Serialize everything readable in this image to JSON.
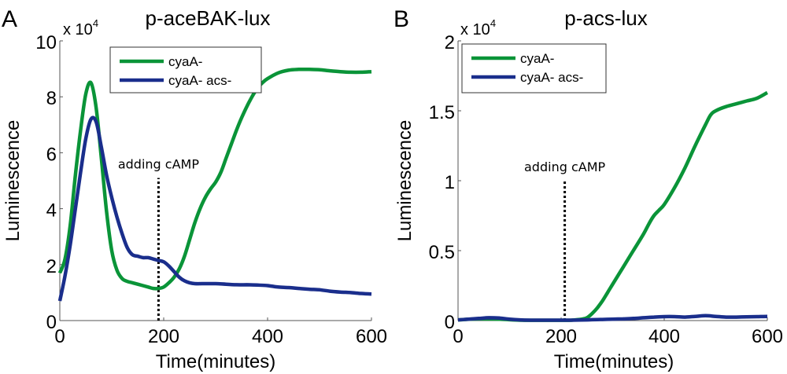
{
  "chart_data": [
    {
      "type": "line",
      "panel_label": "A",
      "title": "p-aceBAK-lux",
      "xlabel": "Time(minutes)",
      "ylabel": "Luminescence",
      "y_multiplier": "x 10",
      "y_multiplier_exp": "4",
      "xlim": [
        0,
        600
      ],
      "ylim": [
        0,
        10
      ],
      "xticks": [
        0,
        200,
        400,
        600
      ],
      "xtick_labels": [
        "0",
        "200",
        "400",
        "600"
      ],
      "yticks": [
        0,
        2,
        4,
        6,
        8,
        10
      ],
      "ytick_labels": [
        "0",
        "2",
        "4",
        "6",
        "8",
        "10"
      ],
      "grid": false,
      "legend": {
        "placement": "top-center",
        "entries": [
          "cyaA-",
          "cyaA- acs-"
        ]
      },
      "annotation": {
        "text": "adding cAMP",
        "x": 190,
        "line_from": 0,
        "line_to": 5.1
      },
      "series": [
        {
          "name": "cyaA-",
          "color": "#0a9438",
          "x": [
            0,
            10,
            20,
            30,
            40,
            50,
            60,
            70,
            80,
            90,
            100,
            110,
            120,
            130,
            140,
            150,
            160,
            170,
            180,
            190,
            200,
            210,
            220,
            230,
            240,
            250,
            260,
            270,
            280,
            290,
            300,
            310,
            320,
            330,
            340,
            350,
            360,
            370,
            380,
            390,
            400,
            420,
            440,
            460,
            480,
            500,
            520,
            540,
            560,
            580,
            600
          ],
          "y": [
            1.7,
            2.2,
            3.4,
            5.2,
            6.8,
            8.1,
            8.5,
            7.6,
            5.8,
            3.9,
            2.5,
            1.8,
            1.5,
            1.4,
            1.35,
            1.3,
            1.25,
            1.2,
            1.15,
            1.15,
            1.2,
            1.35,
            1.55,
            1.85,
            2.3,
            2.9,
            3.5,
            4.0,
            4.4,
            4.7,
            4.95,
            5.3,
            5.8,
            6.3,
            6.8,
            7.25,
            7.65,
            8.0,
            8.3,
            8.5,
            8.65,
            8.85,
            8.95,
            8.98,
            8.98,
            8.97,
            8.93,
            8.9,
            8.88,
            8.88,
            8.9
          ]
        },
        {
          "name": "cyaA- acs-",
          "color": "#1a2e8c",
          "x": [
            0,
            10,
            20,
            30,
            40,
            50,
            60,
            70,
            80,
            90,
            100,
            110,
            120,
            130,
            140,
            150,
            160,
            170,
            180,
            190,
            200,
            210,
            220,
            230,
            240,
            250,
            260,
            280,
            300,
            320,
            340,
            360,
            380,
            400,
            420,
            440,
            460,
            480,
            500,
            520,
            540,
            560,
            580,
            600
          ],
          "y": [
            0.7,
            1.6,
            2.7,
            4.0,
            5.3,
            6.5,
            7.2,
            7.1,
            6.2,
            5.2,
            4.4,
            3.7,
            3.1,
            2.6,
            2.35,
            2.3,
            2.25,
            2.25,
            2.2,
            2.15,
            2.1,
            1.95,
            1.75,
            1.55,
            1.42,
            1.35,
            1.32,
            1.32,
            1.32,
            1.3,
            1.28,
            1.28,
            1.27,
            1.25,
            1.2,
            1.18,
            1.15,
            1.12,
            1.1,
            1.05,
            1.02,
            1.0,
            0.97,
            0.95
          ]
        }
      ]
    },
    {
      "type": "line",
      "panel_label": "B",
      "title": "p-acs-lux",
      "xlabel": "Time(minutes)",
      "ylabel": "Luminescence",
      "y_multiplier": "x 10",
      "y_multiplier_exp": "4",
      "xlim": [
        0,
        600
      ],
      "ylim": [
        0,
        2
      ],
      "xticks": [
        0,
        200,
        400,
        600
      ],
      "xtick_labels": [
        "0",
        "200",
        "400",
        "600"
      ],
      "yticks": [
        0,
        0.5,
        1,
        1.5,
        2
      ],
      "ytick_labels": [
        "0",
        "0.5",
        "1",
        "1.5",
        "2"
      ],
      "grid": false,
      "legend": {
        "placement": "top-left",
        "entries": [
          "cyaA-",
          "cyaA- acs-"
        ]
      },
      "annotation": {
        "text": "adding cAMP",
        "x": 207,
        "line_from": 0,
        "line_to": 1.0
      },
      "series": [
        {
          "name": "cyaA-",
          "color": "#0a9438",
          "x": [
            0,
            40,
            80,
            120,
            160,
            200,
            220,
            240,
            250,
            260,
            270,
            280,
            290,
            300,
            320,
            340,
            360,
            370,
            380,
            390,
            400,
            420,
            440,
            460,
            480,
            490,
            500,
            520,
            540,
            560,
            580,
            600
          ],
          "y": [
            0.005,
            0.012,
            0.01,
            0.003,
            0.002,
            0.002,
            0.003,
            0.01,
            0.02,
            0.05,
            0.09,
            0.14,
            0.2,
            0.26,
            0.38,
            0.5,
            0.62,
            0.69,
            0.75,
            0.79,
            0.83,
            0.95,
            1.09,
            1.25,
            1.4,
            1.47,
            1.5,
            1.53,
            1.55,
            1.57,
            1.59,
            1.63
          ]
        },
        {
          "name": "cyaA- acs-",
          "color": "#1a2e8c",
          "x": [
            0,
            20,
            40,
            60,
            80,
            100,
            120,
            140,
            160,
            180,
            200,
            220,
            240,
            260,
            280,
            300,
            320,
            340,
            360,
            380,
            400,
            420,
            440,
            460,
            480,
            500,
            520,
            540,
            560,
            580,
            600
          ],
          "y": [
            0.005,
            0.01,
            0.015,
            0.02,
            0.018,
            0.01,
            0.005,
            0.003,
            0.003,
            0.003,
            0.003,
            0.003,
            0.004,
            0.006,
            0.008,
            0.01,
            0.012,
            0.015,
            0.02,
            0.025,
            0.028,
            0.028,
            0.025,
            0.03,
            0.035,
            0.03,
            0.025,
            0.025,
            0.027,
            0.028,
            0.03
          ]
        }
      ]
    }
  ]
}
